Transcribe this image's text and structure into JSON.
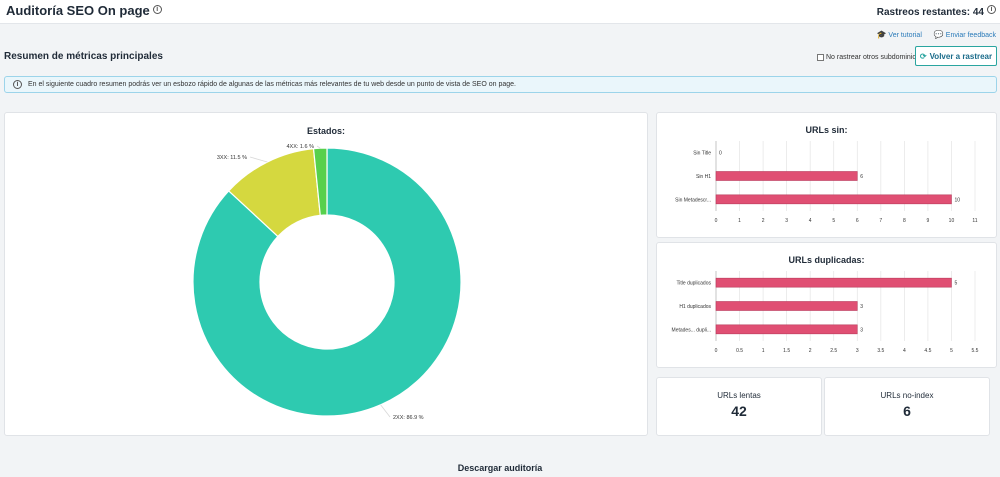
{
  "header": {
    "title": "Auditoría SEO On page",
    "credits": "Rastreos restantes: 44"
  },
  "links": {
    "tutorial": "Ver tutorial",
    "feedback": "Enviar feedback"
  },
  "section": {
    "title": "Resumen de métricas principales"
  },
  "controls": {
    "subdomain_checkbox": "No rastrear otros subdominios",
    "subdomain_checked": false,
    "recrawl_button": "Volver a rastrear"
  },
  "banner": {
    "text": "En el siguiente cuadro resumen podrás ver un esbozo rápido de algunas de las métricas más relevantes de tu web desde un punto de vista de SEO on page."
  },
  "metrics": {
    "slow_label": "URLs lentas",
    "slow_value": "42",
    "noindex_label": "URLs no-index",
    "noindex_value": "6"
  },
  "footer": {
    "download": "Descargar auditoría"
  },
  "colors": {
    "teal": "#2ecab0",
    "yellow": "#d5d83f",
    "green": "#57d04c",
    "bar": "#e04f73"
  },
  "chart_data": [
    {
      "type": "pie",
      "title": "Estados:",
      "slices": [
        {
          "label": "2XX: 86.9 %",
          "value": 86.9,
          "color": "#2ecab0"
        },
        {
          "label": "3XX: 11.5 %",
          "value": 11.5,
          "color": "#d5d83f"
        },
        {
          "label": "4XX: 1.6 %",
          "value": 1.6,
          "color": "#57d04c"
        }
      ]
    },
    {
      "type": "bar",
      "title": "URLs sin:",
      "orientation": "horizontal",
      "categories": [
        "Sin Title",
        "Sin H1",
        "Sin Metadescr..."
      ],
      "values": [
        0,
        6,
        10
      ],
      "xlim": [
        0,
        11
      ],
      "ticks": [
        "0",
        "1",
        "2",
        "3",
        "4",
        "5",
        "6",
        "7",
        "8",
        "9",
        "10",
        "11"
      ]
    },
    {
      "type": "bar",
      "title": "URLs duplicadas:",
      "orientation": "horizontal",
      "categories": [
        "Title duplicados",
        "H1 duplicados",
        "Metades... dupli..."
      ],
      "values": [
        5,
        3,
        3
      ],
      "xlim": [
        0,
        5.5
      ],
      "ticks": [
        "0",
        "0.5",
        "1",
        "1.5",
        "2",
        "2.5",
        "3",
        "3.5",
        "4",
        "4.5",
        "5",
        "5.5"
      ]
    }
  ]
}
